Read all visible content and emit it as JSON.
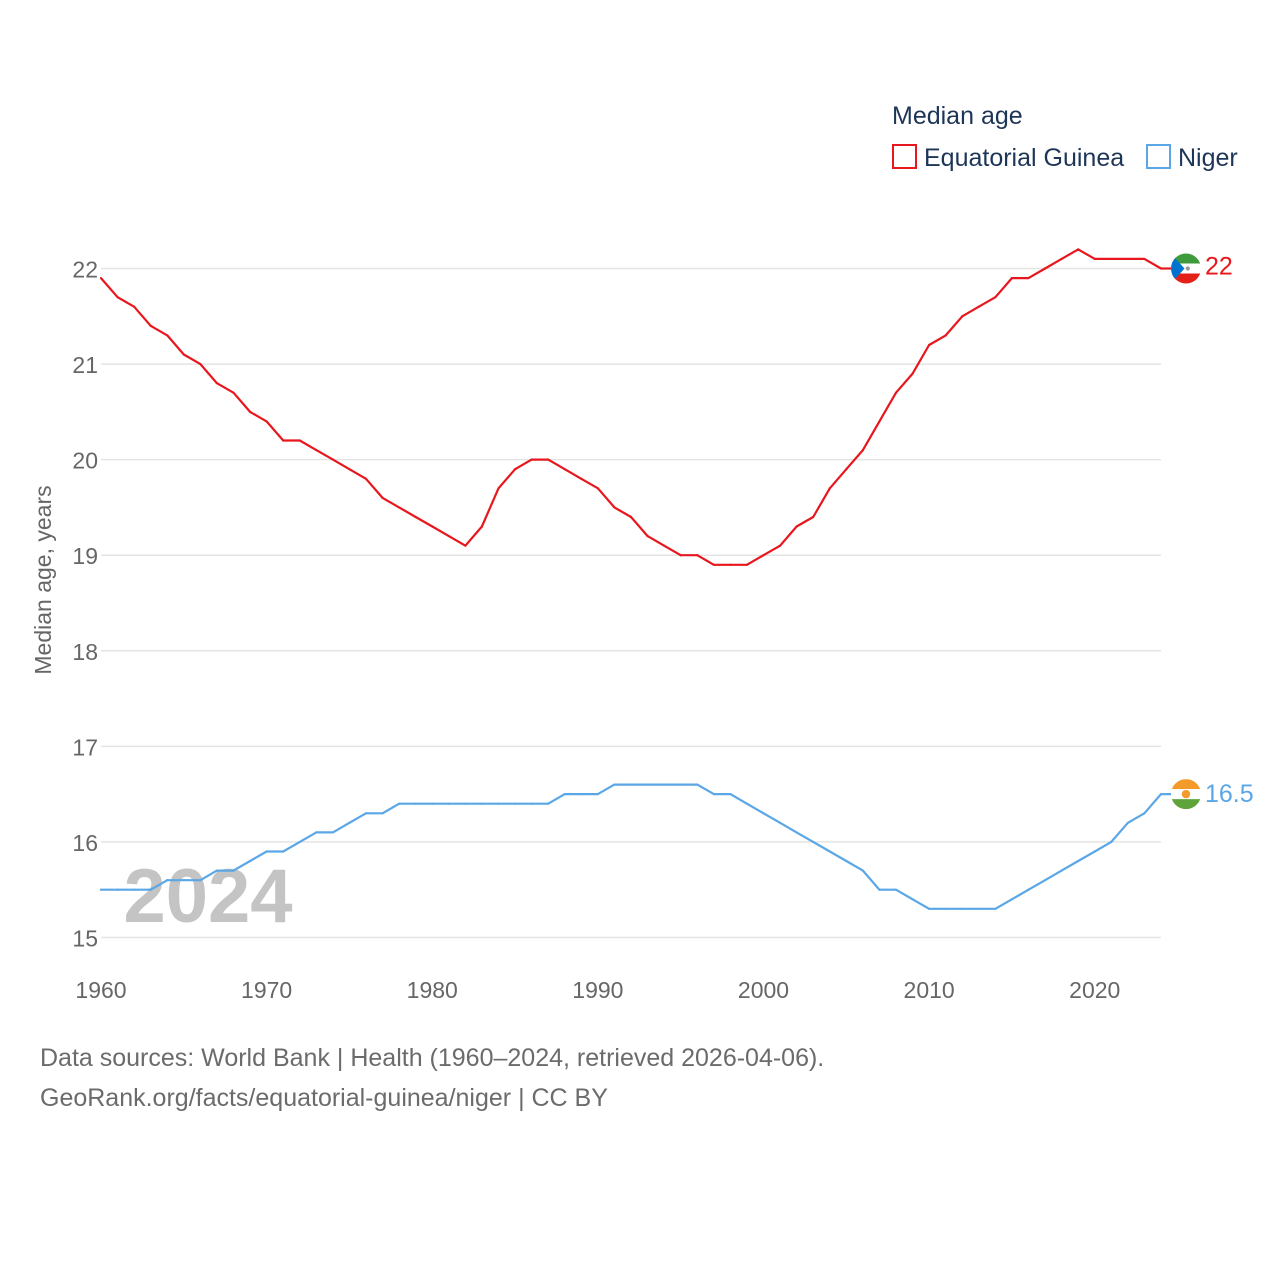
{
  "chart_data": {
    "type": "line",
    "legend_title": "Median age",
    "ylabel": "Median age, years",
    "xlabel": "",
    "xlim": [
      1960,
      2024
    ],
    "ylim": [
      15,
      22
    ],
    "yticks": [
      15,
      16,
      17,
      18,
      19,
      20,
      21,
      22
    ],
    "xticks": [
      1960,
      1970,
      1980,
      1990,
      2000,
      2010,
      2020
    ],
    "year_label": "2024",
    "legend_position": "top-right",
    "grid": true,
    "x": [
      1960,
      1961,
      1962,
      1963,
      1964,
      1965,
      1966,
      1967,
      1968,
      1969,
      1970,
      1971,
      1972,
      1973,
      1974,
      1975,
      1976,
      1977,
      1978,
      1979,
      1980,
      1981,
      1982,
      1983,
      1984,
      1985,
      1986,
      1987,
      1988,
      1989,
      1990,
      1991,
      1992,
      1993,
      1994,
      1995,
      1996,
      1997,
      1998,
      1999,
      2000,
      2001,
      2002,
      2003,
      2004,
      2005,
      2006,
      2007,
      2008,
      2009,
      2010,
      2011,
      2012,
      2013,
      2014,
      2015,
      2016,
      2017,
      2018,
      2019,
      2020,
      2021,
      2022,
      2023,
      2024
    ],
    "series": [
      {
        "name": "Equatorial Guinea",
        "color": "#e8161d",
        "end_label": "22",
        "flag": "equatorial-guinea-flag",
        "values": [
          21.9,
          21.7,
          21.6,
          21.4,
          21.3,
          21.1,
          21.0,
          20.8,
          20.7,
          20.5,
          20.4,
          20.2,
          20.2,
          20.1,
          20.0,
          19.9,
          19.8,
          19.6,
          19.5,
          19.4,
          19.3,
          19.2,
          19.1,
          19.3,
          19.7,
          19.9,
          20.0,
          20.0,
          19.9,
          19.8,
          19.7,
          19.5,
          19.4,
          19.2,
          19.1,
          19.0,
          19.0,
          18.9,
          18.9,
          18.9,
          19.0,
          19.1,
          19.3,
          19.4,
          19.7,
          19.9,
          20.1,
          20.4,
          20.7,
          20.9,
          21.2,
          21.3,
          21.5,
          21.6,
          21.7,
          21.9,
          21.9,
          22.0,
          22.1,
          22.2,
          22.1,
          22.1,
          22.1,
          22.1,
          22.0
        ]
      },
      {
        "name": "Niger",
        "color": "#5aa6e6",
        "end_label": "16.5",
        "flag": "niger-flag",
        "values": [
          15.5,
          15.5,
          15.5,
          15.5,
          15.6,
          15.6,
          15.6,
          15.7,
          15.7,
          15.8,
          15.9,
          15.9,
          16.0,
          16.1,
          16.1,
          16.2,
          16.3,
          16.3,
          16.4,
          16.4,
          16.4,
          16.4,
          16.4,
          16.4,
          16.4,
          16.4,
          16.4,
          16.4,
          16.5,
          16.5,
          16.5,
          16.6,
          16.6,
          16.6,
          16.6,
          16.6,
          16.6,
          16.5,
          16.5,
          16.4,
          16.3,
          16.2,
          16.1,
          16.0,
          15.9,
          15.8,
          15.7,
          15.5,
          15.5,
          15.4,
          15.3,
          15.3,
          15.3,
          15.3,
          15.3,
          15.4,
          15.5,
          15.6,
          15.7,
          15.8,
          15.9,
          16.0,
          16.2,
          16.3,
          16.5
        ]
      }
    ]
  },
  "footer": {
    "line1": "Data sources: World Bank | Health (1960–2024, retrieved 2026-04-06).",
    "line2": "GeoRank.org/facts/equatorial-guinea/niger | CC BY"
  }
}
